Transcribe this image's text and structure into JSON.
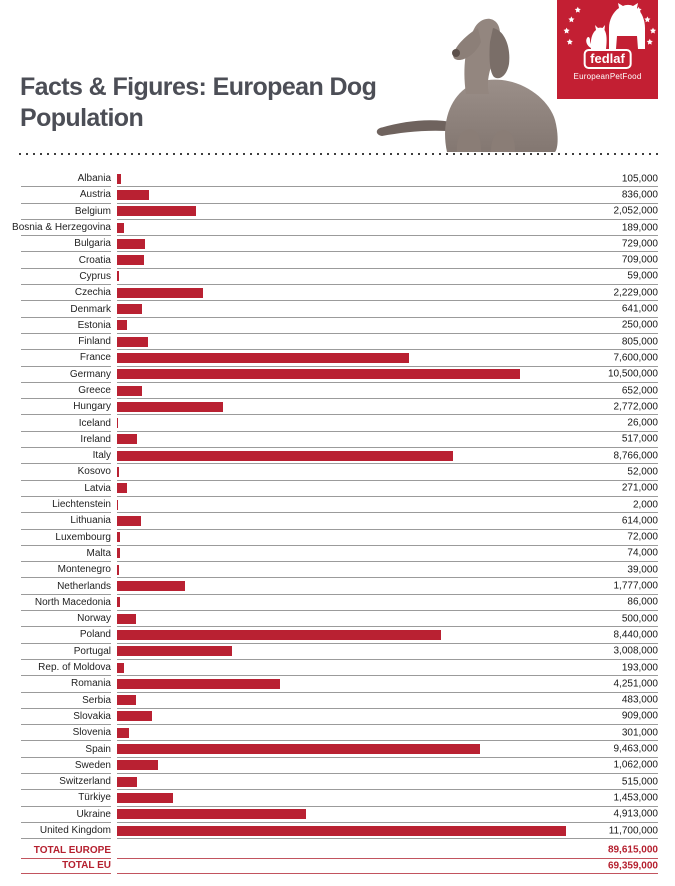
{
  "header": {
    "title_lines": [
      "Facts & Figures: European Dog",
      "Population"
    ],
    "logo": {
      "brand": "fedlaf",
      "tagline": "EuropeanPetFood",
      "bg_color": "#c31f33",
      "icons": [
        "star-circle-icon",
        "dog-silhouette-icon",
        "cat-silhouette-icon"
      ]
    },
    "photo_icon": "weimaraner-puppy-photo"
  },
  "chart_data": {
    "type": "bar",
    "title": "Facts & Figures: European Dog Population",
    "orientation": "horizontal",
    "bar_color": "#b92132",
    "grid": "row-separators",
    "legend": "none",
    "max_value": 11700000,
    "categories": [
      "Albania",
      "Austria",
      "Belgium",
      "Bosnia & Herzegovina",
      "Bulgaria",
      "Croatia",
      "Cyprus",
      "Czechia",
      "Denmark",
      "Estonia",
      "Finland",
      "France",
      "Germany",
      "Greece",
      "Hungary",
      "Iceland",
      "Ireland",
      "Italy",
      "Kosovo",
      "Latvia",
      "Liechtenstein",
      "Lithuania",
      "Luxembourg",
      "Malta",
      "Montenegro",
      "Netherlands",
      "North Macedonia",
      "Norway",
      "Poland",
      "Portugal",
      "Rep. of Moldova",
      "Romania",
      "Serbia",
      "Slovakia",
      "Slovenia",
      "Spain",
      "Sweden",
      "Switzerland",
      "Türkiye",
      "Ukraine",
      "United Kingdom"
    ],
    "values": [
      105000,
      836000,
      2052000,
      189000,
      729000,
      709000,
      59000,
      2229000,
      641000,
      250000,
      805000,
      7600000,
      10500000,
      652000,
      2772000,
      26000,
      517000,
      8766000,
      52000,
      271000,
      2000,
      614000,
      72000,
      74000,
      39000,
      1777000,
      86000,
      500000,
      8440000,
      3008000,
      193000,
      4251000,
      483000,
      909000,
      301000,
      9463000,
      1062000,
      515000,
      1453000,
      4913000,
      11700000
    ],
    "value_labels": [
      "105,000",
      "836,000",
      "2,052,000",
      "189,000",
      "729,000",
      "709,000",
      "59,000",
      "2,229,000",
      "641,000",
      "250,000",
      "805,000",
      "7,600,000",
      "10,500,000",
      "652,000",
      "2,772,000",
      "26,000",
      "517,000",
      "8,766,000",
      "52,000",
      "271,000",
      "2,000",
      "614,000",
      "72,000",
      "74,000",
      "39,000",
      "1,777,000",
      "86,000",
      "500,000",
      "8,440,000",
      "3,008,000",
      "193,000",
      "4,251,000",
      "483,000",
      "909,000",
      "301,000",
      "9,463,000",
      "1,062,000",
      "515,000",
      "1,453,000",
      "4,913,000",
      "11,700,000"
    ],
    "totals": [
      {
        "label": "TOTAL EUROPE",
        "value": 89615000,
        "value_label": "89,615,000"
      },
      {
        "label": "TOTAL EU",
        "value": 69359000,
        "value_label": "69,359,000"
      }
    ]
  }
}
